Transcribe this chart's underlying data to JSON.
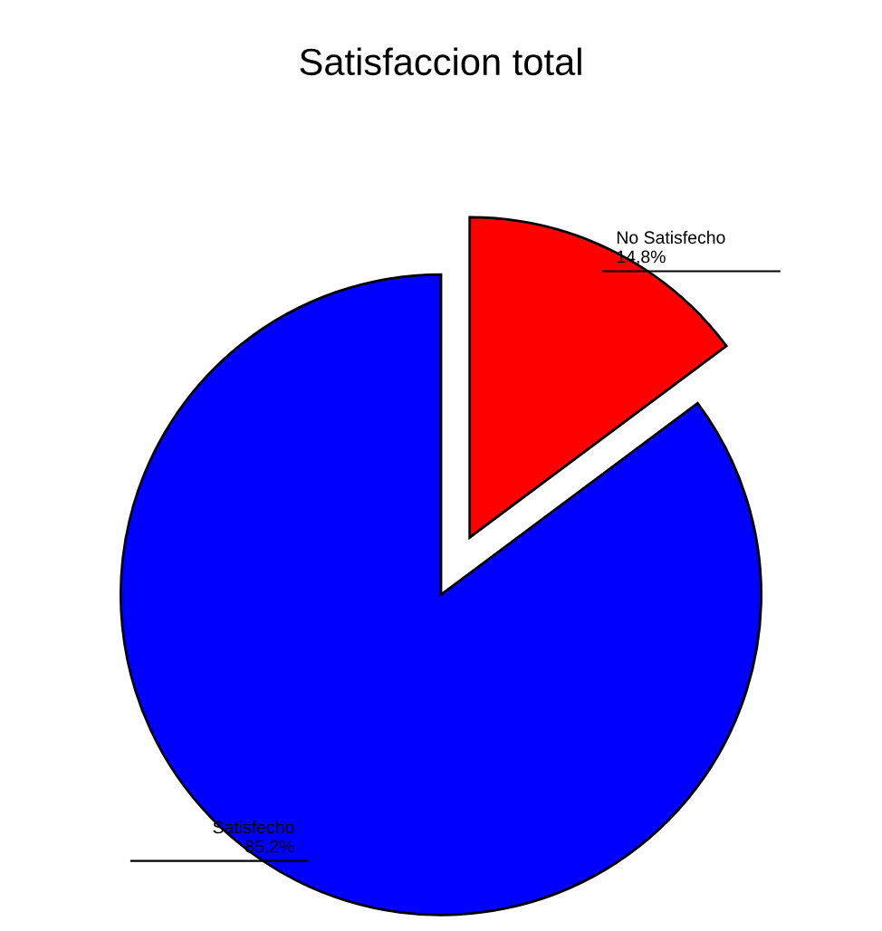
{
  "chart_data": {
    "type": "pie",
    "title": "Satisfaccion total",
    "categories": [
      "No Satisfecho",
      "Satisfecho"
    ],
    "values": [
      14.8,
      85.2
    ],
    "colors": [
      "#ff0000",
      "#0000ff"
    ],
    "value_labels": [
      "14,8%",
      "85,2%"
    ]
  }
}
